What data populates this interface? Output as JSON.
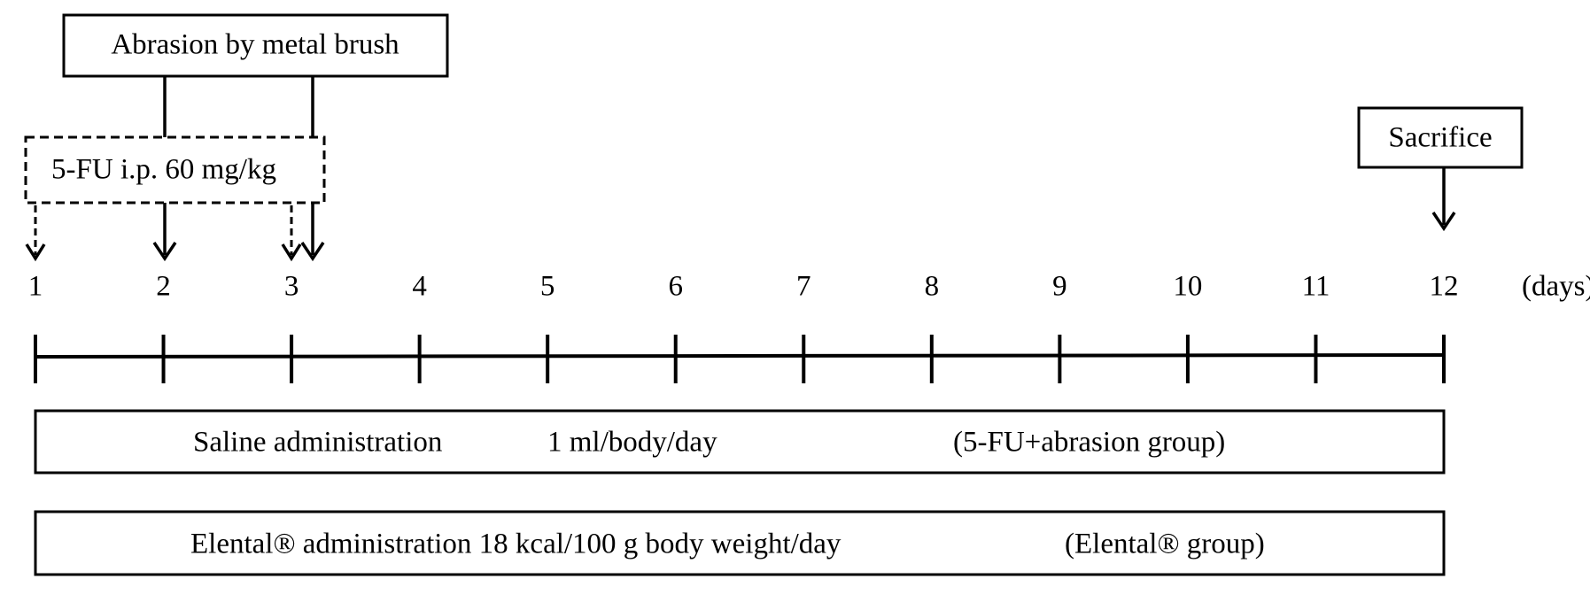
{
  "top_box": "Abrasion by metal brush",
  "dose_box": "5-FU i.p. 60 mg/kg",
  "end_box": "Sacrifice",
  "timeline": {
    "days": [
      1,
      2,
      3,
      4,
      5,
      6,
      7,
      8,
      9,
      10,
      11,
      12
    ],
    "unit": "(days)"
  },
  "groups": [
    {
      "treatment": "Saline administration",
      "dose": "1 ml/body/day",
      "group": "(5-FU+abrasion group)"
    },
    {
      "treatment": "Elental® administration 18 kcal/100 g body weight/day",
      "group": "(Elental® group)"
    }
  ]
}
